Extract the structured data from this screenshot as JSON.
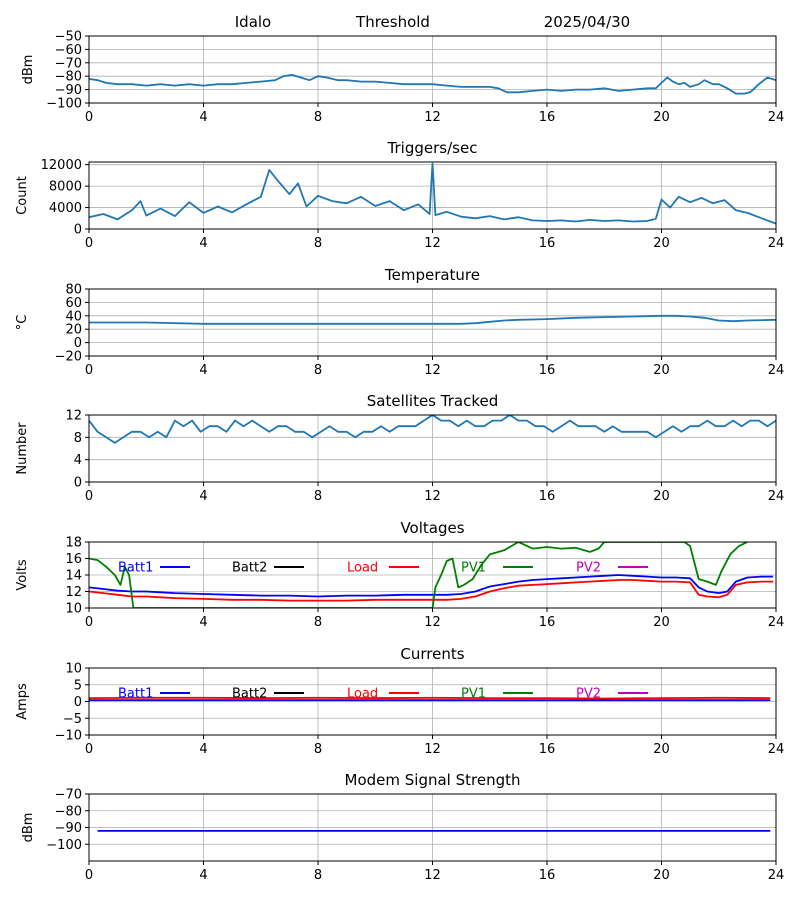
{
  "header": {
    "station": "Idalo",
    "threshold_label": "Threshold",
    "date": "2025/04/30"
  },
  "colors": {
    "series_default": "#1f77b4",
    "batt1": "#0000ff",
    "batt2": "#000000",
    "load": "#ff0000",
    "pv1": "#008000",
    "pv2": "#bf00bf",
    "grid": "#b0b0b0"
  },
  "chart_data": [
    {
      "id": "threshold",
      "type": "line",
      "title": "",
      "xlabel": "",
      "ylabel": "dBm",
      "xlim": [
        0,
        24
      ],
      "ylim": [
        -100,
        -50
      ],
      "xticks": [
        0,
        4,
        8,
        12,
        16,
        20,
        24
      ],
      "yticks": [
        -100,
        -90,
        -80,
        -70,
        -60,
        -50
      ],
      "grid": true,
      "series": [
        {
          "color": "#1f77b4",
          "x": [
            0,
            0.3,
            0.6,
            1,
            1.5,
            2,
            2.5,
            3,
            3.5,
            4,
            4.5,
            5,
            5.5,
            6,
            6.5,
            6.8,
            7.1,
            7.4,
            7.7,
            8,
            8.3,
            8.7,
            9,
            9.5,
            10,
            10.5,
            11,
            11.5,
            12,
            12.5,
            13,
            13.5,
            14,
            14.3,
            14.6,
            15,
            15.5,
            16,
            16.5,
            17,
            17.5,
            18,
            18.5,
            19,
            19.5,
            19.8,
            20,
            20.2,
            20.4,
            20.6,
            20.8,
            21,
            21.3,
            21.5,
            21.8,
            22,
            22.3,
            22.6,
            22.9,
            23.1,
            23.4,
            23.7,
            24
          ],
          "y": [
            -82,
            -83,
            -85,
            -86,
            -86,
            -87,
            -86,
            -87,
            -86,
            -87,
            -86,
            -86,
            -85,
            -84,
            -83,
            -80,
            -79,
            -81,
            -83,
            -80,
            -81,
            -83,
            -83,
            -84,
            -84,
            -85,
            -86,
            -86,
            -86,
            -87,
            -88,
            -88,
            -88,
            -89,
            -92,
            -92,
            -91,
            -90,
            -91,
            -90,
            -90,
            -89,
            -91,
            -90,
            -89,
            -89,
            -85,
            -81,
            -84,
            -86,
            -85,
            -88,
            -86,
            -83,
            -86,
            -86,
            -89,
            -93,
            -93,
            -92,
            -86,
            -81,
            -83
          ]
        }
      ]
    },
    {
      "id": "triggers",
      "type": "line",
      "title": "Triggers/sec",
      "xlabel": "",
      "ylabel": "Count",
      "xlim": [
        0,
        24
      ],
      "ylim": [
        0,
        12500
      ],
      "xticks": [
        0,
        4,
        8,
        12,
        16,
        20,
        24
      ],
      "yticks": [
        0,
        4000,
        8000,
        12000
      ],
      "grid": true,
      "series": [
        {
          "color": "#1f77b4",
          "x": [
            0,
            0.5,
            1,
            1.5,
            1.8,
            2,
            2.5,
            3,
            3.5,
            4,
            4.5,
            5,
            5.5,
            6,
            6.3,
            6.6,
            7,
            7.3,
            7.6,
            8,
            8.5,
            9,
            9.5,
            10,
            10.5,
            11,
            11.5,
            11.9,
            12,
            12.1,
            12.5,
            13,
            13.5,
            14,
            14.5,
            15,
            15.5,
            16,
            16.5,
            17,
            17.5,
            18,
            18.5,
            19,
            19.5,
            19.8,
            20,
            20.3,
            20.6,
            21,
            21.4,
            21.8,
            22.2,
            22.6,
            23,
            23.5,
            24
          ],
          "y": [
            2200,
            2800,
            1800,
            3500,
            5200,
            2500,
            3800,
            2400,
            5000,
            3000,
            4200,
            3100,
            4600,
            6000,
            11000,
            9000,
            6500,
            8500,
            4200,
            6200,
            5200,
            4800,
            6000,
            4300,
            5200,
            3500,
            4600,
            2800,
            12200,
            2600,
            3200,
            2300,
            2000,
            2400,
            1800,
            2200,
            1600,
            1500,
            1600,
            1400,
            1700,
            1500,
            1600,
            1400,
            1500,
            1900,
            5500,
            4000,
            6000,
            5000,
            5800,
            4800,
            5400,
            3500,
            3000,
            2000,
            1000
          ]
        }
      ]
    },
    {
      "id": "temperature",
      "type": "line",
      "title": "Temperature",
      "xlabel": "",
      "ylabel": "°C",
      "xlim": [
        0,
        24
      ],
      "ylim": [
        -20,
        80
      ],
      "xticks": [
        0,
        4,
        8,
        12,
        16,
        20,
        24
      ],
      "yticks": [
        -20,
        0,
        20,
        40,
        60,
        80
      ],
      "grid": true,
      "series": [
        {
          "color": "#1f77b4",
          "x": [
            0,
            2,
            4,
            6,
            8,
            10,
            12,
            13,
            13.5,
            14,
            14.5,
            15,
            16,
            17,
            18,
            19,
            20,
            20.5,
            21,
            21.5,
            22,
            22.5,
            23,
            24
          ],
          "y": [
            30,
            30,
            28,
            28,
            28,
            28,
            28,
            28,
            29,
            31,
            33,
            34,
            35,
            37,
            38,
            39,
            40,
            40,
            39,
            37,
            33,
            32,
            33,
            34
          ]
        }
      ]
    },
    {
      "id": "satellites",
      "type": "line",
      "title": "Satellites Tracked",
      "xlabel": "",
      "ylabel": "Number",
      "xlim": [
        0,
        24
      ],
      "ylim": [
        0,
        12
      ],
      "xticks": [
        0,
        4,
        8,
        12,
        16,
        20,
        24
      ],
      "yticks": [
        0,
        4,
        8,
        12
      ],
      "grid": true,
      "series": [
        {
          "color": "#1f77b4",
          "x": [
            0,
            0.3,
            0.6,
            0.9,
            1.2,
            1.5,
            1.8,
            2.1,
            2.4,
            2.7,
            3,
            3.3,
            3.6,
            3.9,
            4.2,
            4.5,
            4.8,
            5.1,
            5.4,
            5.7,
            6,
            6.3,
            6.6,
            6.9,
            7.2,
            7.5,
            7.8,
            8.1,
            8.4,
            8.7,
            9,
            9.3,
            9.6,
            9.9,
            10.2,
            10.5,
            10.8,
            11.1,
            11.4,
            11.7,
            12,
            12.3,
            12.6,
            12.9,
            13.2,
            13.5,
            13.8,
            14.1,
            14.4,
            14.7,
            15,
            15.3,
            15.6,
            15.9,
            16.2,
            16.5,
            16.8,
            17.1,
            17.4,
            17.7,
            18,
            18.3,
            18.6,
            18.9,
            19.2,
            19.5,
            19.8,
            20.1,
            20.4,
            20.7,
            21,
            21.3,
            21.6,
            21.9,
            22.2,
            22.5,
            22.8,
            23.1,
            23.4,
            23.7,
            24
          ],
          "y": [
            11,
            9,
            8,
            7,
            8,
            9,
            9,
            8,
            9,
            8,
            11,
            10,
            11,
            9,
            10,
            10,
            9,
            11,
            10,
            11,
            10,
            9,
            10,
            10,
            9,
            9,
            8,
            9,
            10,
            9,
            9,
            8,
            9,
            9,
            10,
            9,
            10,
            10,
            10,
            11,
            12,
            11,
            11,
            10,
            11,
            10,
            10,
            11,
            11,
            12,
            11,
            11,
            10,
            10,
            9,
            10,
            11,
            10,
            10,
            10,
            9,
            10,
            9,
            9,
            9,
            9,
            8,
            9,
            10,
            9,
            10,
            10,
            11,
            10,
            10,
            11,
            10,
            11,
            11,
            10,
            11
          ]
        }
      ]
    },
    {
      "id": "voltages",
      "type": "line",
      "title": "Voltages",
      "xlabel": "",
      "ylabel": "Volts",
      "xlim": [
        0,
        24
      ],
      "ylim": [
        10,
        18
      ],
      "xticks": [
        0,
        4,
        8,
        12,
        16,
        20,
        24
      ],
      "yticks": [
        10,
        12,
        14,
        16,
        18
      ],
      "grid": true,
      "legend": [
        "Batt1",
        "Batt2",
        "Load",
        "PV1",
        "PV2"
      ],
      "series": [
        {
          "name": "Batt1",
          "color": "#0000ff",
          "x": [
            0,
            0.5,
            1,
            1.5,
            2,
            2.5,
            3,
            4,
            5,
            6,
            7,
            8,
            9,
            10,
            11,
            12,
            12.5,
            13,
            13.5,
            14,
            14.5,
            15,
            15.5,
            16,
            16.5,
            17,
            17.5,
            18,
            18.5,
            19,
            19.5,
            20,
            20.5,
            21,
            21.3,
            21.6,
            22,
            22.3,
            22.6,
            23,
            23.5,
            23.9
          ],
          "y": [
            12.5,
            12.3,
            12.1,
            12.0,
            12.0,
            11.9,
            11.8,
            11.7,
            11.6,
            11.5,
            11.5,
            11.4,
            11.5,
            11.5,
            11.6,
            11.6,
            11.6,
            11.7,
            12.0,
            12.6,
            12.9,
            13.2,
            13.4,
            13.5,
            13.6,
            13.7,
            13.8,
            13.9,
            14.0,
            13.9,
            13.8,
            13.7,
            13.7,
            13.6,
            12.5,
            12.0,
            11.8,
            12.0,
            13.2,
            13.7,
            13.8,
            13.8
          ]
        },
        {
          "name": "Load",
          "color": "#ff0000",
          "x": [
            0,
            0.5,
            1,
            1.5,
            2,
            2.5,
            3,
            4,
            5,
            6,
            7,
            8,
            9,
            10,
            11,
            12,
            12.5,
            13,
            13.5,
            14,
            14.5,
            15,
            15.5,
            16,
            16.5,
            17,
            17.5,
            18,
            18.5,
            19,
            19.5,
            20,
            20.5,
            21,
            21.3,
            21.6,
            22,
            22.3,
            22.6,
            23,
            23.5,
            23.9
          ],
          "y": [
            12.0,
            11.8,
            11.6,
            11.4,
            11.4,
            11.3,
            11.2,
            11.1,
            11.0,
            11.0,
            10.9,
            10.9,
            10.9,
            11.0,
            11.0,
            11.0,
            11.0,
            11.1,
            11.4,
            12.0,
            12.4,
            12.7,
            12.8,
            12.9,
            13.0,
            13.1,
            13.2,
            13.3,
            13.4,
            13.4,
            13.3,
            13.2,
            13.2,
            13.1,
            11.6,
            11.4,
            11.3,
            11.6,
            12.8,
            13.1,
            13.2,
            13.2
          ]
        },
        {
          "name": "PV1",
          "color": "#008000",
          "x": [
            0,
            0.3,
            0.6,
            0.9,
            1.1,
            1.25,
            1.4,
            1.55,
            12,
            12.1,
            12.3,
            12.5,
            12.7,
            12.9,
            13.1,
            13.4,
            13.7,
            14,
            14.5,
            15,
            15.5,
            16,
            16.5,
            17,
            17.5,
            17.8,
            18,
            18.3,
            18.6,
            18.9,
            19.2,
            19.5,
            19.8,
            20,
            20.5,
            20.8,
            21,
            21.3,
            21.6,
            21.9,
            22.1,
            22.4,
            22.7,
            23
          ],
          "y": [
            16.0,
            15.8,
            15.0,
            14.0,
            12.8,
            15.0,
            14.0,
            10.0,
            10.0,
            12.5,
            14.0,
            15.7,
            16.0,
            12.5,
            12.8,
            13.5,
            15.2,
            16.5,
            17.0,
            18.0,
            17.2,
            17.4,
            17.2,
            17.3,
            16.8,
            17.2,
            18.0,
            18.0,
            18.0,
            18.0,
            18.0,
            18.0,
            18.0,
            18.0,
            18.0,
            18.0,
            17.5,
            13.5,
            13.2,
            12.8,
            14.5,
            16.5,
            17.5,
            18.0
          ]
        }
      ]
    },
    {
      "id": "currents",
      "type": "line",
      "title": "Currents",
      "xlabel": "",
      "ylabel": "Amps",
      "xlim": [
        0,
        24
      ],
      "ylim": [
        -10,
        10
      ],
      "xticks": [
        0,
        4,
        8,
        12,
        16,
        20,
        24
      ],
      "yticks": [
        -10,
        -5,
        0,
        5,
        10
      ],
      "grid": true,
      "legend": [
        "Batt1",
        "Batt2",
        "Load",
        "PV1",
        "PV2"
      ],
      "series": [
        {
          "name": "Load",
          "color": "#ff0000",
          "x": [
            0,
            2,
            4,
            6,
            8,
            10,
            12,
            14,
            16,
            18,
            20,
            22,
            23.8
          ],
          "y": [
            1.0,
            1.1,
            1.1,
            1.0,
            1.1,
            1.0,
            1.1,
            1.0,
            1.0,
            0.9,
            1.0,
            1.1,
            1.0
          ]
        },
        {
          "name": "Batt1",
          "color": "#0000ff",
          "x": [
            0,
            2,
            4,
            6,
            8,
            10,
            12,
            14,
            16,
            18,
            20,
            22,
            23.8
          ],
          "y": [
            0.4,
            0.4,
            0.4,
            0.4,
            0.4,
            0.4,
            0.4,
            0.4,
            0.4,
            0.4,
            0.4,
            0.4,
            0.4
          ]
        }
      ]
    },
    {
      "id": "modem",
      "type": "line",
      "title": "Modem Signal Strength",
      "xlabel": "",
      "ylabel": "dBm",
      "xlim": [
        0,
        24
      ],
      "ylim": [
        -110,
        -70
      ],
      "xticks": [
        0,
        4,
        8,
        12,
        16,
        20,
        24
      ],
      "yticks": [
        -100,
        -90,
        -80,
        -70
      ],
      "grid": true,
      "series": [
        {
          "color": "#0000ff",
          "x": [
            0.3,
            23.8
          ],
          "y": [
            -92,
            -92
          ]
        }
      ]
    }
  ]
}
